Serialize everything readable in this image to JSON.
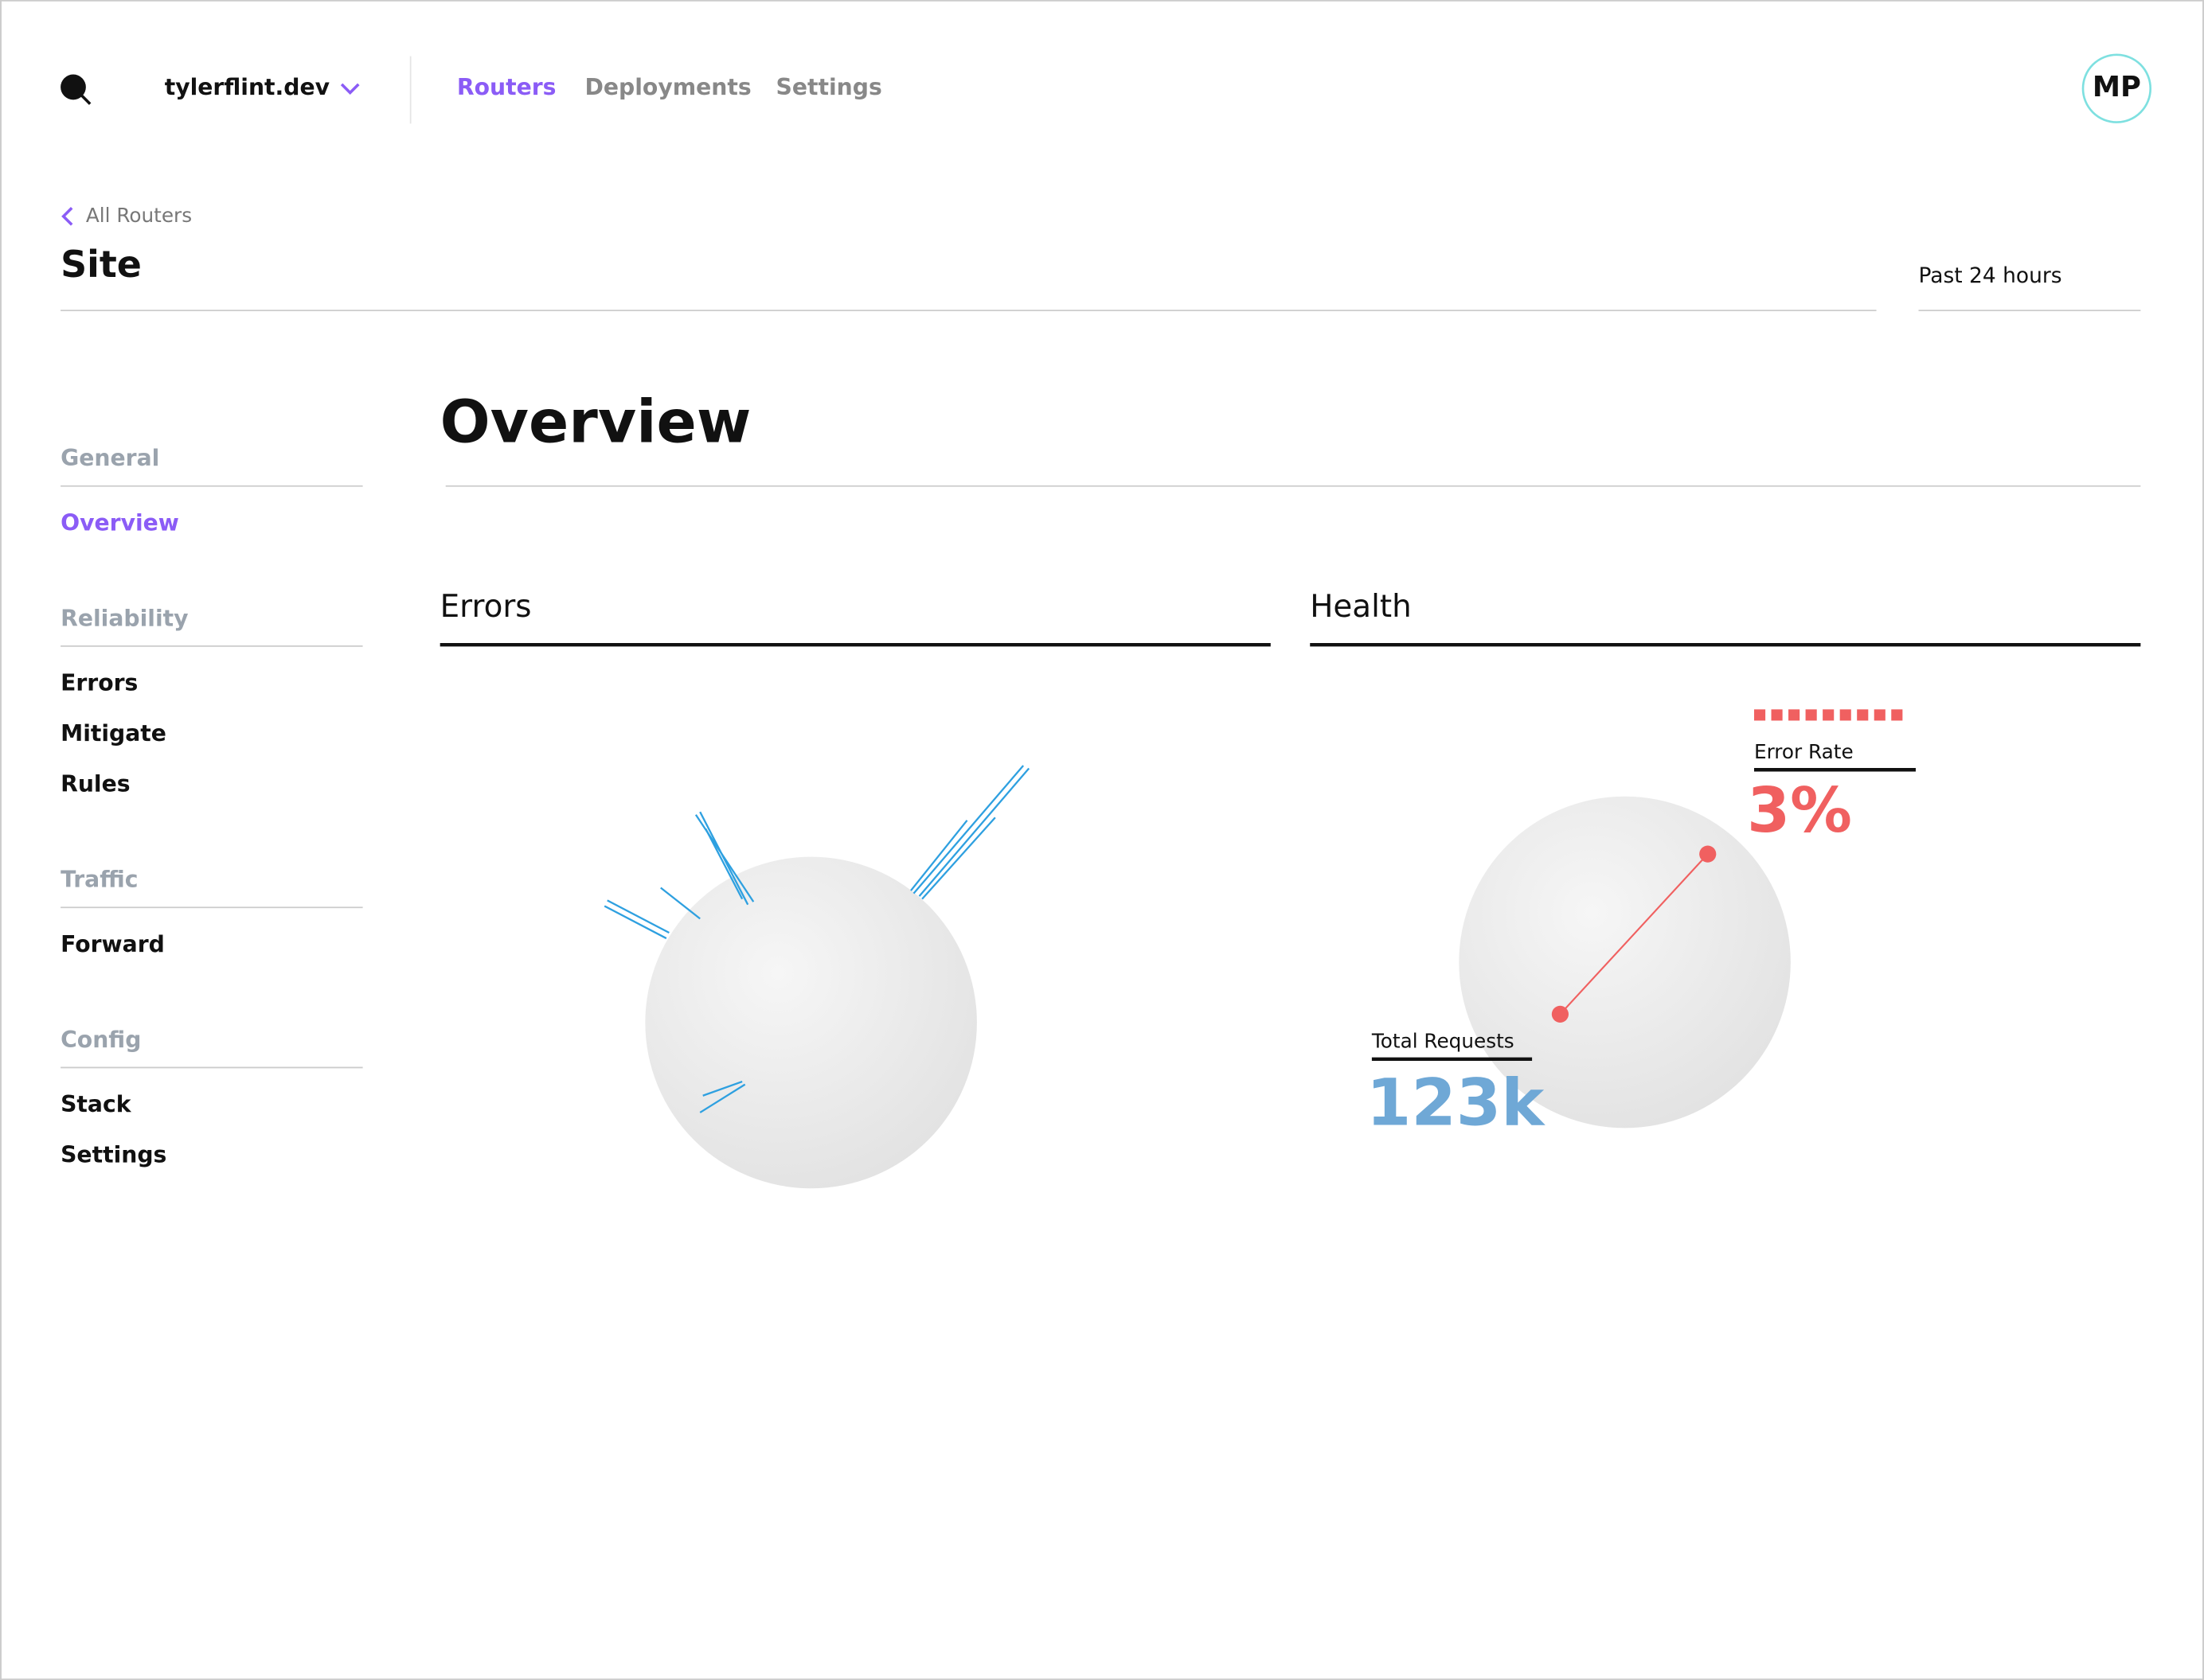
{
  "header": {
    "workspace": "tylerflint.dev",
    "nav": [
      "Routers",
      "Deployments",
      "Settings"
    ],
    "avatar": "MP"
  },
  "page": {
    "breadcrumb": "All Routers",
    "title": "Site",
    "time_range": "Past 24 hours"
  },
  "sidebar": [
    {
      "heading": "General",
      "items": [
        "Overview"
      ]
    },
    {
      "heading": "Reliability",
      "items": [
        "Errors",
        "Mitigate",
        "Rules"
      ]
    },
    {
      "heading": "Traffic",
      "items": [
        "Forward"
      ]
    },
    {
      "heading": "Config",
      "items": [
        "Stack",
        "Settings"
      ]
    }
  ],
  "content": {
    "title": "Overview",
    "panels": [
      {
        "title": "Errors"
      },
      {
        "title": "Health",
        "error_rate_label": "Error Rate",
        "error_rate": "3%",
        "requests_label": "Total Requests",
        "requests": "123k"
      }
    ]
  }
}
